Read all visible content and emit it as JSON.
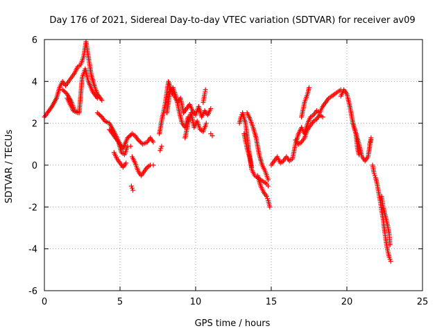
{
  "chart_data": {
    "type": "scatter",
    "title": "Day 176 of 2021, Sidereal Day-to-day VTEC variation (SDTVAR) for receiver av09",
    "xlabel": "GPS time / hours",
    "ylabel": "SDTVAR / TECUs",
    "xlim": [
      0,
      25
    ],
    "ylim": [
      -6,
      6
    ],
    "xticks": [
      0,
      5,
      10,
      15,
      20,
      25
    ],
    "yticks": [
      -6,
      -4,
      -2,
      0,
      2,
      4,
      6
    ],
    "grid": true,
    "marker": "+",
    "colors": {
      "series": "#ff0000",
      "axis": "#000000",
      "grid": "#a0a0a0"
    },
    "series": [
      {
        "name": "SDTVAR av09",
        "segments": [
          {
            "x": [
              0.0,
              0.2,
              0.5,
              0.8,
              1.0,
              1.2,
              1.4,
              1.6,
              1.8,
              2.0,
              2.2,
              2.4,
              2.6,
              2.75,
              2.9,
              3.1,
              3.3,
              3.5,
              3.8
            ],
            "y": [
              2.3,
              2.5,
              2.8,
              3.2,
              3.7,
              4.0,
              3.8,
              4.0,
              4.2,
              4.4,
              4.7,
              4.8,
              5.2,
              5.9,
              5.2,
              4.3,
              3.8,
              3.4,
              3.1
            ]
          },
          {
            "x": [
              1.2,
              1.5,
              1.8,
              2.0,
              2.3,
              2.5,
              2.7,
              2.9,
              3.2,
              3.5
            ],
            "y": [
              3.6,
              3.4,
              3.0,
              2.6,
              2.5,
              4.2,
              4.6,
              4.0,
              3.5,
              3.2
            ]
          },
          {
            "x": [
              1.5,
              1.7,
              1.9,
              2.2
            ],
            "y": [
              3.2,
              2.9,
              2.6,
              2.5
            ]
          },
          {
            "x": [
              3.5,
              3.8,
              4.0,
              4.3,
              4.6,
              4.8,
              5.0,
              5.2,
              5.5,
              5.8,
              6.0,
              6.2,
              6.5,
              6.8,
              7.0,
              7.2
            ],
            "y": [
              2.5,
              2.3,
              2.1,
              2.0,
              1.6,
              1.3,
              1.0,
              0.8,
              1.3,
              1.5,
              1.4,
              1.2,
              1.0,
              1.1,
              1.3,
              1.1
            ]
          },
          {
            "x": [
              4.3,
              4.6,
              4.9,
              5.1,
              5.3,
              5.5,
              5.7
            ],
            "y": [
              1.7,
              1.4,
              1.1,
              0.6,
              0.5,
              0.9,
              0.9
            ]
          },
          {
            "x": [
              4.6,
              4.8,
              5.0,
              5.2,
              5.4
            ],
            "y": [
              0.6,
              0.3,
              0.1,
              -0.1,
              0.1
            ]
          },
          {
            "x": [
              5.8,
              6.0,
              6.2,
              6.4,
              6.6,
              6.8,
              7.0,
              7.2
            ],
            "y": [
              0.4,
              0.1,
              -0.3,
              -0.5,
              -0.3,
              -0.1,
              0.0,
              0.0
            ]
          },
          {
            "x": [
              5.75,
              5.8,
              5.85
            ],
            "y": [
              -1.0,
              -1.1,
              -1.2
            ]
          },
          {
            "x": [
              7.6,
              7.8,
              7.9,
              8.0,
              8.2,
              8.4,
              8.6,
              8.8,
              9.0,
              9.2,
              9.4,
              9.6,
              9.8,
              10.0,
              10.2,
              10.4,
              10.6,
              10.8,
              11.0
            ],
            "y": [
              1.5,
              2.3,
              2.6,
              3.0,
              4.0,
              3.5,
              3.3,
              3.0,
              3.2,
              2.5,
              2.7,
              2.9,
              2.6,
              2.4,
              2.8,
              2.3,
              2.6,
              2.4,
              2.7
            ]
          },
          {
            "x": [
              8.1,
              8.3,
              8.5,
              8.7,
              8.9,
              9.1,
              9.3,
              9.5
            ],
            "y": [
              2.5,
              3.5,
              3.7,
              3.3,
              2.6,
              2.0,
              1.8,
              2.3
            ]
          },
          {
            "x": [
              9.3,
              9.5,
              9.7,
              9.9,
              10.1,
              10.3,
              10.5,
              10.7
            ],
            "y": [
              1.3,
              2.0,
              2.5,
              1.8,
              2.1,
              1.7,
              1.6,
              2.0
            ]
          },
          {
            "x": [
              10.5,
              10.6,
              10.65
            ],
            "y": [
              3.0,
              3.4,
              3.6
            ]
          },
          {
            "x": [
              7.65,
              7.75
            ],
            "y": [
              0.7,
              0.9
            ]
          },
          {
            "x": [
              11.0,
              11.1
            ],
            "y": [
              1.5,
              1.4
            ]
          },
          {
            "x": [
              12.9,
              13.0,
              13.1,
              13.3,
              13.5,
              13.7,
              13.9,
              14.1,
              14.3,
              14.5,
              14.7,
              14.8
            ],
            "y": [
              2.0,
              2.3,
              2.5,
              2.0,
              0.8,
              -0.2,
              -0.5,
              -0.6,
              -0.7,
              -0.8,
              -0.9,
              -1.0
            ]
          },
          {
            "x": [
              13.4,
              13.6,
              13.8,
              14.0,
              14.2,
              14.4,
              14.6,
              14.8
            ],
            "y": [
              2.5,
              2.2,
              1.8,
              1.3,
              0.5,
              0.0,
              -0.3,
              -0.7
            ]
          },
          {
            "x": [
              13.2,
              13.4,
              13.6,
              13.7
            ],
            "y": [
              1.5,
              0.8,
              0.3,
              -0.1
            ]
          },
          {
            "x": [
              14.1,
              14.3,
              14.5,
              14.7,
              14.8,
              14.9
            ],
            "y": [
              -0.5,
              -1.0,
              -1.3,
              -1.5,
              -1.7,
              -2.0
            ]
          },
          {
            "x": [
              15.0,
              15.2,
              15.4,
              15.6,
              15.8,
              16.0,
              16.2,
              16.4,
              16.6,
              16.8,
              17.0,
              17.2,
              17.4,
              17.6,
              17.8,
              18.0,
              18.2,
              18.4,
              18.6,
              18.8,
              19.0,
              19.2,
              19.4,
              19.6
            ],
            "y": [
              0.0,
              0.2,
              0.4,
              0.1,
              0.2,
              0.4,
              0.2,
              0.3,
              1.0,
              1.5,
              1.8,
              1.5,
              2.0,
              2.3,
              2.4,
              2.6,
              2.5,
              2.8,
              3.0,
              3.2,
              3.3,
              3.4,
              3.5,
              3.6
            ]
          },
          {
            "x": [
              16.6,
              16.8,
              17.0,
              17.2,
              17.4,
              17.6,
              17.8,
              18.0,
              18.2,
              18.4
            ],
            "y": [
              1.2,
              1.0,
              1.1,
              1.3,
              1.7,
              1.9,
              2.1,
              2.2,
              2.4,
              2.3
            ]
          },
          {
            "x": [
              17.0,
              17.2,
              17.4,
              17.5
            ],
            "y": [
              2.3,
              3.0,
              3.4,
              3.7
            ]
          },
          {
            "x": [
              19.6,
              19.8,
              20.0,
              20.2,
              20.4,
              20.6,
              20.8,
              21.0,
              21.2,
              21.4,
              21.6
            ],
            "y": [
              3.3,
              3.6,
              3.4,
              2.8,
              2.0,
              1.5,
              1.0,
              0.4,
              0.2,
              0.4,
              1.3
            ]
          },
          {
            "x": [
              20.4,
              20.6,
              20.7,
              20.8
            ],
            "y": [
              2.0,
              1.5,
              0.8,
              0.5
            ]
          },
          {
            "x": [
              21.5,
              21.6
            ],
            "y": [
              1.0,
              1.2
            ]
          },
          {
            "x": [
              21.7,
              21.8,
              21.9,
              22.0,
              22.1,
              22.2,
              22.3,
              22.4,
              22.5,
              22.6,
              22.7,
              22.8,
              22.9
            ],
            "y": [
              0.0,
              -0.4,
              -0.6,
              -0.9,
              -1.3,
              -1.7,
              -2.2,
              -2.6,
              -3.2,
              -3.7,
              -4.1,
              -4.4,
              -4.6
            ]
          },
          {
            "x": [
              22.3,
              22.4,
              22.5,
              22.6,
              22.7,
              22.8,
              22.85
            ],
            "y": [
              -1.5,
              -2.0,
              -2.3,
              -2.6,
              -2.9,
              -3.3,
              -3.8
            ]
          }
        ]
      }
    ]
  }
}
